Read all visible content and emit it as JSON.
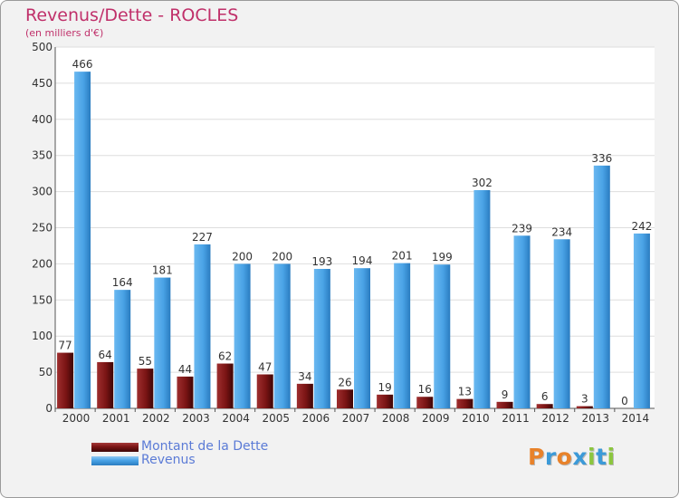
{
  "title": "Revenus/Dette - ROCLES",
  "subtitle": "(en milliers d'€)",
  "colors": {
    "dette": "#7a1414",
    "revenus": "#4aa3e6",
    "title": "#c0306a",
    "legend_text": "#5b7bd6"
  },
  "legend": [
    {
      "label": "Montant de la Dette"
    },
    {
      "label": "Revenus"
    }
  ],
  "logo": {
    "text": "Proxiti"
  },
  "chart_data": {
    "type": "bar",
    "title": "Revenus/Dette - ROCLES",
    "subtitle": "(en milliers d'€)",
    "categories": [
      "2000",
      "2001",
      "2002",
      "2003",
      "2004",
      "2005",
      "2006",
      "2007",
      "2008",
      "2009",
      "2010",
      "2011",
      "2012",
      "2013",
      "2014"
    ],
    "series": [
      {
        "name": "Montant de la Dette",
        "values": [
          77,
          64,
          55,
          44,
          62,
          47,
          34,
          26,
          19,
          16,
          13,
          9,
          6,
          3,
          0
        ]
      },
      {
        "name": "Revenus",
        "values": [
          466,
          164,
          181,
          227,
          200,
          200,
          193,
          194,
          201,
          199,
          302,
          239,
          234,
          336,
          242
        ]
      }
    ],
    "ylim": [
      0,
      500
    ],
    "yticks": [
      0,
      50,
      100,
      150,
      200,
      250,
      300,
      350,
      400,
      450,
      500
    ],
    "grid": true,
    "legend_position": "bottom-left"
  }
}
